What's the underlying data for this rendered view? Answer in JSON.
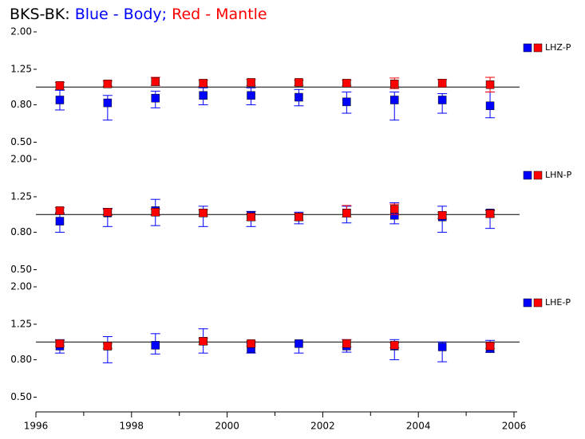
{
  "title_parts": [
    {
      "text": "BKS-BK:",
      "color": "#000000"
    },
    {
      "text": "Blue - Body;",
      "color": "#0000ff"
    },
    {
      "text": "Red - Mantle",
      "color": "#ff0000"
    }
  ],
  "chart_data": [
    {
      "type": "scatter",
      "legend": "LHZ-P",
      "x": [
        1996.5,
        1997.5,
        1998.5,
        1999.5,
        2000.5,
        2001.5,
        2002.5,
        2003.5,
        2004.5,
        2005.5
      ],
      "xlim": [
        1996,
        2006
      ],
      "ylim": [
        0.5,
        2.0
      ],
      "log_y": true,
      "reference": 1,
      "yticks": [
        {
          "value": 0.5,
          "label": "0.50"
        },
        {
          "value": 0.8,
          "label": "0.80"
        },
        {
          "value": 1.25,
          "label": "1.25"
        },
        {
          "value": 2.0,
          "label": "2.00"
        }
      ],
      "series": [
        {
          "color": "#0000ff",
          "values": [
            0.85,
            0.82,
            0.87,
            0.9,
            0.9,
            0.88,
            0.83,
            0.85,
            0.85,
            0.79
          ],
          "lower": [
            0.75,
            0.66,
            0.77,
            0.8,
            0.8,
            0.79,
            0.72,
            0.66,
            0.72,
            0.68
          ],
          "upper": [
            0.96,
            0.9,
            0.95,
            0.99,
            0.99,
            0.97,
            0.94,
            0.94,
            0.92,
            0.94
          ]
        },
        {
          "color": "#ff0000",
          "values": [
            1.02,
            1.04,
            1.07,
            1.05,
            1.06,
            1.06,
            1.05,
            1.04,
            1.05,
            1.03
          ],
          "lower": [
            0.97,
            1.01,
            1.02,
            1.01,
            1.02,
            1.02,
            1.02,
            0.98,
            1.0,
            0.94
          ],
          "upper": [
            1.06,
            1.08,
            1.13,
            1.09,
            1.1,
            1.09,
            1.09,
            1.12,
            1.1,
            1.13
          ]
        }
      ]
    },
    {
      "type": "scatter",
      "legend": "LHN-P",
      "x": [
        1996.5,
        1997.5,
        1998.5,
        1999.5,
        2000.5,
        2001.5,
        2002.5,
        2003.5,
        2004.5,
        2005.5
      ],
      "xlim": [
        1996,
        2006
      ],
      "ylim": [
        0.5,
        2.0
      ],
      "log_y": true,
      "reference": 1,
      "yticks": [
        {
          "value": 0.5,
          "label": "0.50"
        },
        {
          "value": 0.8,
          "label": "0.80"
        },
        {
          "value": 1.25,
          "label": "1.25"
        },
        {
          "value": 2.0,
          "label": "2.00"
        }
      ],
      "series": [
        {
          "color": "#0000ff",
          "values": [
            0.92,
            1.02,
            1.05,
            1.02,
            0.99,
            0.97,
            1.02,
            0.99,
            0.97,
            1.02
          ],
          "lower": [
            0.8,
            0.86,
            0.87,
            0.86,
            0.86,
            0.89,
            0.9,
            0.89,
            0.8,
            0.84
          ],
          "upper": [
            1.02,
            1.08,
            1.21,
            1.11,
            1.04,
            1.03,
            1.11,
            1.16,
            1.11,
            1.06
          ]
        },
        {
          "color": "#ff0000",
          "values": [
            1.05,
            1.03,
            1.03,
            1.02,
            0.97,
            0.97,
            1.02,
            1.07,
            0.99,
            1.01
          ],
          "lower": [
            1.01,
            0.99,
            0.99,
            0.98,
            0.93,
            0.93,
            0.97,
            1.0,
            0.95,
            0.97
          ],
          "upper": [
            1.09,
            1.07,
            1.07,
            1.06,
            1.01,
            1.01,
            1.12,
            1.14,
            1.03,
            1.05
          ]
        }
      ]
    },
    {
      "type": "scatter",
      "legend": "LHE-P",
      "x": [
        1996.5,
        1997.5,
        1998.5,
        1999.5,
        2000.5,
        2001.5,
        2002.5,
        2003.5,
        2004.5,
        2005.5
      ],
      "xlim": [
        1996,
        2006
      ],
      "ylim": [
        0.5,
        2.0
      ],
      "log_y": true,
      "reference": 1,
      "yticks": [
        {
          "value": 0.5,
          "label": "0.50"
        },
        {
          "value": 0.8,
          "label": "0.80"
        },
        {
          "value": 1.25,
          "label": "1.25"
        },
        {
          "value": 2.0,
          "label": "2.00"
        }
      ],
      "xticks": [
        1996,
        1998,
        2000,
        2002,
        2004,
        2006
      ],
      "xminorticks": [
        1997,
        1999,
        2001,
        2003,
        2005
      ],
      "series": [
        {
          "color": "#0000ff",
          "values": [
            0.95,
            0.95,
            0.96,
            1.01,
            0.92,
            0.98,
            0.95,
            0.95,
            0.94,
            0.92
          ],
          "lower": [
            0.87,
            0.77,
            0.86,
            0.87,
            0.87,
            0.87,
            0.88,
            0.8,
            0.78,
            0.88
          ],
          "upper": [
            1.03,
            1.07,
            1.11,
            1.18,
            0.98,
            1.0,
            1.03,
            1.03,
            1.0,
            1.02
          ]
        },
        {
          "color": "#ff0000",
          "values": [
            0.98,
            0.95,
            null,
            1.01,
            0.98,
            null,
            0.98,
            0.96,
            null,
            0.95
          ],
          "lower": [
            0.95,
            0.92,
            null,
            0.97,
            0.95,
            null,
            0.94,
            0.93,
            null,
            0.92
          ],
          "upper": [
            1.02,
            0.98,
            null,
            1.05,
            1.01,
            null,
            1.03,
            0.99,
            null,
            0.98
          ]
        }
      ]
    }
  ]
}
